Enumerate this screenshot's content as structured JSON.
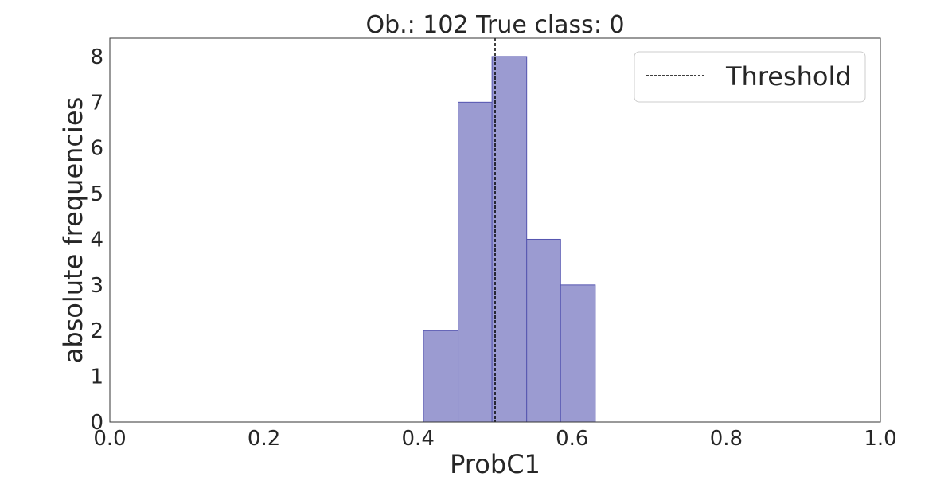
{
  "chart_data": {
    "type": "bar",
    "title": "Ob.: 102 True class: 0",
    "xlabel": "ProbC1",
    "ylabel": "absolute frequencies",
    "xlim": [
      0.0,
      1.0
    ],
    "ylim": [
      0,
      8.4
    ],
    "xticks": [
      0.0,
      0.2,
      0.4,
      0.6,
      0.8,
      1.0
    ],
    "xtick_labels": [
      "0.0",
      "0.2",
      "0.4",
      "0.6",
      "0.8",
      "1.0"
    ],
    "yticks": [
      0,
      1,
      2,
      3,
      4,
      5,
      6,
      7,
      8
    ],
    "ytick_labels": [
      "0",
      "1",
      "2",
      "3",
      "4",
      "5",
      "6",
      "7",
      "8"
    ],
    "bins": [
      {
        "start": 0.407,
        "end": 0.452,
        "count": 2
      },
      {
        "start": 0.452,
        "end": 0.496,
        "count": 7
      },
      {
        "start": 0.496,
        "end": 0.541,
        "count": 8
      },
      {
        "start": 0.541,
        "end": 0.585,
        "count": 4
      },
      {
        "start": 0.585,
        "end": 0.63,
        "count": 3
      }
    ],
    "threshold": 0.5,
    "grid": false,
    "legend": {
      "position": "top-right",
      "entries": [
        "Threshold"
      ]
    },
    "colors": {
      "bar_fill": "#9b9bd1",
      "bar_edge": "#5555b0",
      "threshold_line": "#000000"
    }
  }
}
